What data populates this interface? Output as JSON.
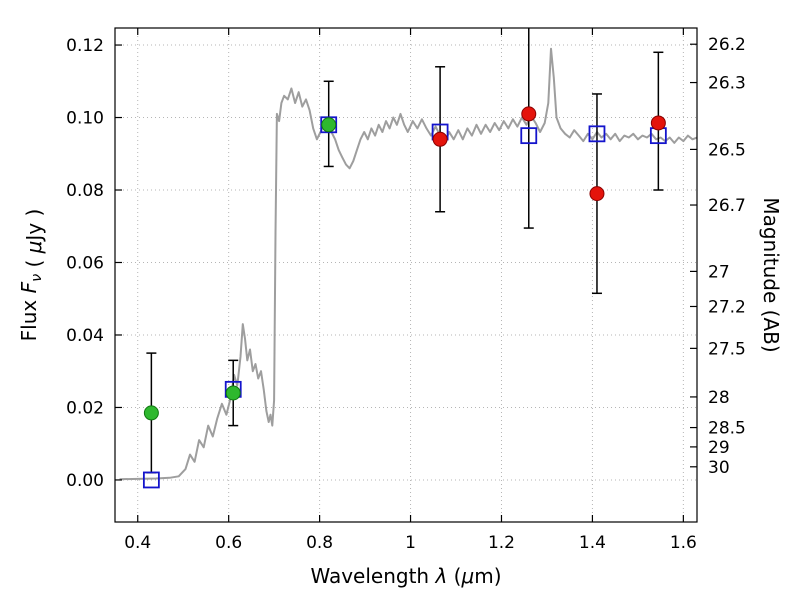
{
  "figure": {
    "background": "#ffffff"
  },
  "chart_data": {
    "type": "line",
    "title": "",
    "xlabel_parts": [
      {
        "t": "Wavelength  "
      },
      {
        "t": "λ",
        "i": true
      },
      {
        "t": " ("
      },
      {
        "t": "μ",
        "i": true
      },
      {
        "t": "m)"
      }
    ],
    "ylabel_left_parts": [
      {
        "t": "Flux  "
      },
      {
        "t": "F",
        "i": true
      },
      {
        "t": "ν",
        "i": true,
        "sub": true
      },
      {
        "t": "  ( "
      },
      {
        "t": "μ",
        "i": true
      },
      {
        "t": "Jy )"
      }
    ],
    "ylabel_right": "Magnitude (AB)",
    "xlim": [
      0.35,
      1.63
    ],
    "ylim": [
      -0.0116,
      0.1247
    ],
    "grid": true,
    "x_ticks": [
      0.4,
      0.6,
      0.8,
      1.0,
      1.2,
      1.4,
      1.6
    ],
    "x_tick_labels": [
      "0.4",
      "0.6",
      "0.8",
      "1",
      "1.2",
      "1.4",
      "1.6"
    ],
    "y_ticks_left": [
      0.0,
      0.02,
      0.04,
      0.06,
      0.08,
      0.1,
      0.12
    ],
    "y_tick_labels_left": [
      "0.00",
      "0.02",
      "0.04",
      "0.06",
      "0.08",
      "0.10",
      "0.12"
    ],
    "y_ticks_right_mag": [
      26.2,
      26.3,
      26.5,
      26.7,
      27.0,
      27.2,
      27.5,
      28.0,
      28.5,
      29.0,
      30.0
    ],
    "y_tick_labels_right": [
      "26.2",
      "26.3",
      "26.5",
      "26.7",
      "27",
      "27.2",
      "27.5",
      "28",
      "28.5",
      "29",
      "30"
    ],
    "mag_zeropoint": 23.9,
    "colors": {
      "spectrum": "#9e9e9e",
      "green_points": "#2eb82e",
      "green_edge": "#117711",
      "red_points": "#e4140c",
      "red_edge": "#8b0000",
      "blue_squares": "#1414cc",
      "error_bars": "#000000",
      "grid": "#b5b5b5",
      "frame": "#000000"
    },
    "series": [
      {
        "name": "model-spectrum",
        "type": "line",
        "points": [
          [
            0.36,
            0.0002
          ],
          [
            0.4,
            0.0003
          ],
          [
            0.44,
            0.0004
          ],
          [
            0.47,
            0.0006
          ],
          [
            0.49,
            0.001
          ],
          [
            0.505,
            0.003
          ],
          [
            0.515,
            0.007
          ],
          [
            0.525,
            0.005
          ],
          [
            0.535,
            0.011
          ],
          [
            0.545,
            0.009
          ],
          [
            0.555,
            0.015
          ],
          [
            0.565,
            0.012
          ],
          [
            0.575,
            0.017
          ],
          [
            0.585,
            0.021
          ],
          [
            0.595,
            0.018
          ],
          [
            0.605,
            0.023
          ],
          [
            0.612,
            0.029
          ],
          [
            0.619,
            0.026
          ],
          [
            0.626,
            0.034
          ],
          [
            0.631,
            0.043
          ],
          [
            0.636,
            0.039
          ],
          [
            0.641,
            0.033
          ],
          [
            0.647,
            0.036
          ],
          [
            0.653,
            0.03
          ],
          [
            0.659,
            0.032
          ],
          [
            0.665,
            0.028
          ],
          [
            0.671,
            0.03
          ],
          [
            0.677,
            0.025
          ],
          [
            0.683,
            0.019
          ],
          [
            0.688,
            0.016
          ],
          [
            0.692,
            0.018
          ],
          [
            0.696,
            0.015
          ],
          [
            0.7,
            0.022
          ],
          [
            0.703,
            0.068
          ],
          [
            0.706,
            0.101
          ],
          [
            0.711,
            0.099
          ],
          [
            0.716,
            0.104
          ],
          [
            0.722,
            0.106
          ],
          [
            0.73,
            0.105
          ],
          [
            0.738,
            0.108
          ],
          [
            0.746,
            0.104
          ],
          [
            0.754,
            0.107
          ],
          [
            0.762,
            0.103
          ],
          [
            0.77,
            0.105
          ],
          [
            0.778,
            0.102
          ],
          [
            0.786,
            0.097
          ],
          [
            0.794,
            0.094
          ],
          [
            0.802,
            0.096
          ],
          [
            0.81,
            0.098
          ],
          [
            0.818,
            0.099
          ],
          [
            0.826,
            0.096
          ],
          [
            0.834,
            0.094
          ],
          [
            0.842,
            0.091
          ],
          [
            0.85,
            0.089
          ],
          [
            0.858,
            0.087
          ],
          [
            0.866,
            0.086
          ],
          [
            0.874,
            0.088
          ],
          [
            0.882,
            0.091
          ],
          [
            0.89,
            0.094
          ],
          [
            0.898,
            0.096
          ],
          [
            0.906,
            0.094
          ],
          [
            0.914,
            0.097
          ],
          [
            0.922,
            0.095
          ],
          [
            0.93,
            0.098
          ],
          [
            0.938,
            0.096
          ],
          [
            0.946,
            0.099
          ],
          [
            0.954,
            0.097
          ],
          [
            0.962,
            0.1
          ],
          [
            0.97,
            0.098
          ],
          [
            0.978,
            0.101
          ],
          [
            0.986,
            0.098
          ],
          [
            0.994,
            0.096
          ],
          [
            1.005,
            0.099
          ],
          [
            1.015,
            0.097
          ],
          [
            1.025,
            0.0995
          ],
          [
            1.035,
            0.097
          ],
          [
            1.045,
            0.095
          ],
          [
            1.055,
            0.0975
          ],
          [
            1.065,
            0.095
          ],
          [
            1.075,
            0.093
          ],
          [
            1.085,
            0.096
          ],
          [
            1.095,
            0.094
          ],
          [
            1.105,
            0.0965
          ],
          [
            1.115,
            0.094
          ],
          [
            1.125,
            0.097
          ],
          [
            1.135,
            0.095
          ],
          [
            1.145,
            0.098
          ],
          [
            1.155,
            0.0955
          ],
          [
            1.165,
            0.098
          ],
          [
            1.175,
            0.096
          ],
          [
            1.185,
            0.0985
          ],
          [
            1.195,
            0.0965
          ],
          [
            1.205,
            0.099
          ],
          [
            1.215,
            0.097
          ],
          [
            1.225,
            0.0995
          ],
          [
            1.235,
            0.0975
          ],
          [
            1.245,
            0.1
          ],
          [
            1.255,
            0.098
          ],
          [
            1.265,
            0.1005
          ],
          [
            1.275,
            0.0985
          ],
          [
            1.285,
            0.096
          ],
          [
            1.295,
            0.0985
          ],
          [
            1.303,
            0.104
          ],
          [
            1.309,
            0.119
          ],
          [
            1.315,
            0.111
          ],
          [
            1.321,
            0.1
          ],
          [
            1.33,
            0.097
          ],
          [
            1.34,
            0.0955
          ],
          [
            1.35,
            0.0945
          ],
          [
            1.36,
            0.0965
          ],
          [
            1.37,
            0.095
          ],
          [
            1.38,
            0.0935
          ],
          [
            1.39,
            0.0955
          ],
          [
            1.4,
            0.094
          ],
          [
            1.41,
            0.096
          ],
          [
            1.42,
            0.0945
          ],
          [
            1.43,
            0.0955
          ],
          [
            1.44,
            0.094
          ],
          [
            1.45,
            0.0955
          ],
          [
            1.46,
            0.0935
          ],
          [
            1.47,
            0.095
          ],
          [
            1.48,
            0.0945
          ],
          [
            1.49,
            0.0955
          ],
          [
            1.5,
            0.094
          ],
          [
            1.51,
            0.095
          ],
          [
            1.52,
            0.0945
          ],
          [
            1.53,
            0.0955
          ],
          [
            1.54,
            0.094
          ],
          [
            1.55,
            0.0945
          ],
          [
            1.56,
            0.0935
          ],
          [
            1.57,
            0.0945
          ],
          [
            1.58,
            0.093
          ],
          [
            1.59,
            0.0945
          ],
          [
            1.6,
            0.0935
          ],
          [
            1.61,
            0.095
          ],
          [
            1.62,
            0.094
          ],
          [
            1.63,
            0.0945
          ]
        ]
      },
      {
        "name": "observed-photometry-optical",
        "type": "scatter",
        "marker": "circle",
        "points": [
          {
            "x": 0.43,
            "y": 0.0185,
            "err_minus": 0.0165,
            "err_plus": 0.0165
          },
          {
            "x": 0.61,
            "y": 0.024,
            "err_minus": 0.009,
            "err_plus": 0.009
          },
          {
            "x": 0.82,
            "y": 0.098,
            "err_minus": 0.0115,
            "err_plus": 0.012
          }
        ]
      },
      {
        "name": "observed-photometry-infrared",
        "type": "scatter",
        "marker": "circle",
        "points": [
          {
            "x": 1.065,
            "y": 0.094,
            "err_minus": 0.02,
            "err_plus": 0.02
          },
          {
            "x": 1.26,
            "y": 0.101,
            "err_minus": 0.0315,
            "err_plus": 0.037
          },
          {
            "x": 1.41,
            "y": 0.079,
            "err_minus": 0.0275,
            "err_plus": 0.0275
          },
          {
            "x": 1.545,
            "y": 0.0985,
            "err_minus": 0.0185,
            "err_plus": 0.0195
          }
        ]
      },
      {
        "name": "model-photometry",
        "type": "scatter",
        "marker": "square-open",
        "points": [
          {
            "x": 0.43,
            "y": 0.0
          },
          {
            "x": 0.61,
            "y": 0.025
          },
          {
            "x": 0.82,
            "y": 0.098
          },
          {
            "x": 1.065,
            "y": 0.096
          },
          {
            "x": 1.26,
            "y": 0.095
          },
          {
            "x": 1.41,
            "y": 0.0955
          },
          {
            "x": 1.545,
            "y": 0.095
          }
        ]
      }
    ]
  }
}
